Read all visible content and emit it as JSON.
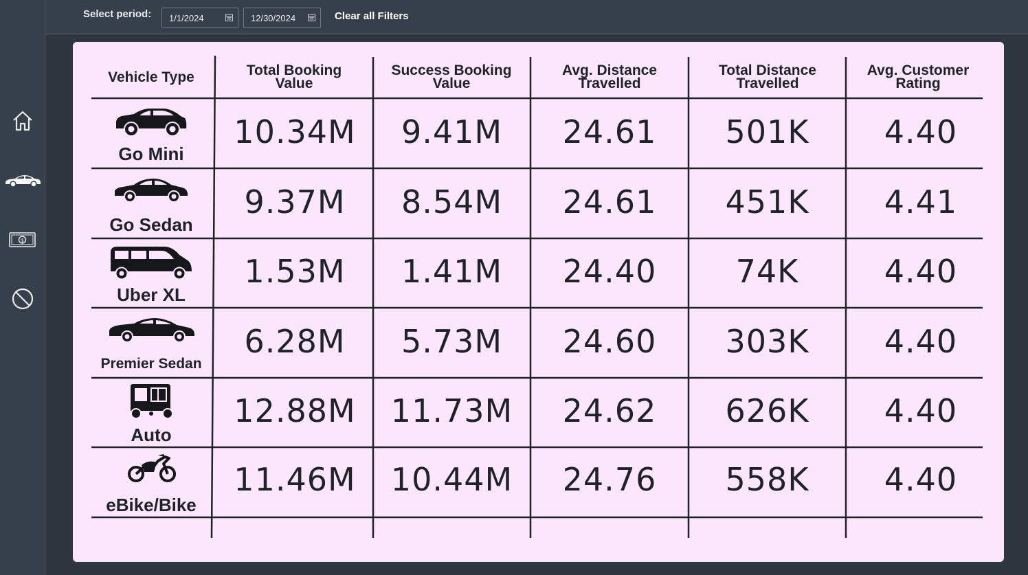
{
  "filters": {
    "label": "Select period:",
    "start_date": "1/1/2024",
    "end_date": "12/30/2024",
    "clear_label": "Clear all Filters"
  },
  "nav": {
    "items": [
      {
        "icon": "home-icon"
      },
      {
        "icon": "car-icon"
      },
      {
        "icon": "money-icon"
      },
      {
        "icon": "cancel-icon"
      }
    ]
  },
  "table": {
    "headers": {
      "vehicle_type": "Vehicle Type",
      "total_booking_1": "Total Booking",
      "total_booking_2": "Value",
      "success_booking_1": "Success Booking",
      "success_booking_2": "Value",
      "avg_distance_1": "Avg. Distance",
      "avg_distance_2": "Travelled",
      "total_distance_1": "Total Distance",
      "total_distance_2": "Travelled",
      "avg_rating_1": "Avg. Customer",
      "avg_rating_2": "Rating"
    },
    "rows": [
      {
        "vehicle": "Go Mini",
        "icon": "hatchback-icon",
        "total_booking": "10.34M",
        "success_booking": "9.41M",
        "avg_distance": "24.61",
        "total_distance": "501K",
        "rating": "4.40"
      },
      {
        "vehicle": "Go Sedan",
        "icon": "sedan-icon",
        "total_booking": "9.37M",
        "success_booking": "8.54M",
        "avg_distance": "24.61",
        "total_distance": "451K",
        "rating": "4.41"
      },
      {
        "vehicle": "Uber XL",
        "icon": "minivan-icon",
        "total_booking": "1.53M",
        "success_booking": "1.41M",
        "avg_distance": "24.40",
        "total_distance": "74K",
        "rating": "4.40"
      },
      {
        "vehicle": "Premier Sedan",
        "icon": "premier-sedan-icon",
        "total_booking": "6.28M",
        "success_booking": "5.73M",
        "avg_distance": "24.60",
        "total_distance": "303K",
        "rating": "4.40"
      },
      {
        "vehicle": "Auto",
        "icon": "auto-rickshaw-icon",
        "total_booking": "12.88M",
        "success_booking": "11.73M",
        "avg_distance": "24.62",
        "total_distance": "626K",
        "rating": "4.40"
      },
      {
        "vehicle": "eBike/Bike",
        "icon": "motorbike-icon",
        "total_booking": "11.46M",
        "success_booking": "10.44M",
        "avg_distance": "24.76",
        "total_distance": "558K",
        "rating": "4.40"
      }
    ]
  },
  "colors": {
    "background": "#2e3740",
    "nav": "#36404a",
    "panel": "#fbe6fb",
    "text": "#1f2329"
  }
}
